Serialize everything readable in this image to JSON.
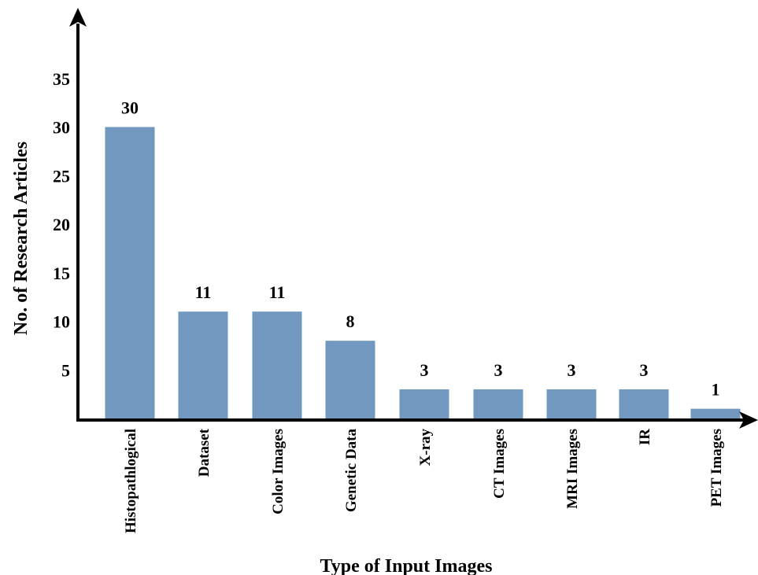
{
  "chart_data": {
    "type": "bar",
    "title": "",
    "xlabel": "Type of Input Images",
    "ylabel": "No. of Research Articles",
    "categories": [
      "Histopathlogical",
      "Dataset",
      "Color Images",
      "Genetic Data",
      "X-ray",
      "CT Images",
      "MRI Images",
      "IR",
      "PET Images"
    ],
    "values": [
      30,
      11,
      11,
      8,
      3,
      3,
      3,
      3,
      1
    ],
    "data_labels": [
      "30",
      "11",
      "11",
      "8",
      "3",
      "3",
      "3",
      "3",
      "1"
    ],
    "yticks": [
      "5",
      "10",
      "15",
      "20",
      "25",
      "30",
      "35"
    ],
    "ylim": [
      0,
      38
    ],
    "grid": false,
    "legend": "none",
    "bar_color": "#7298c0",
    "axis_color": "#000000"
  }
}
